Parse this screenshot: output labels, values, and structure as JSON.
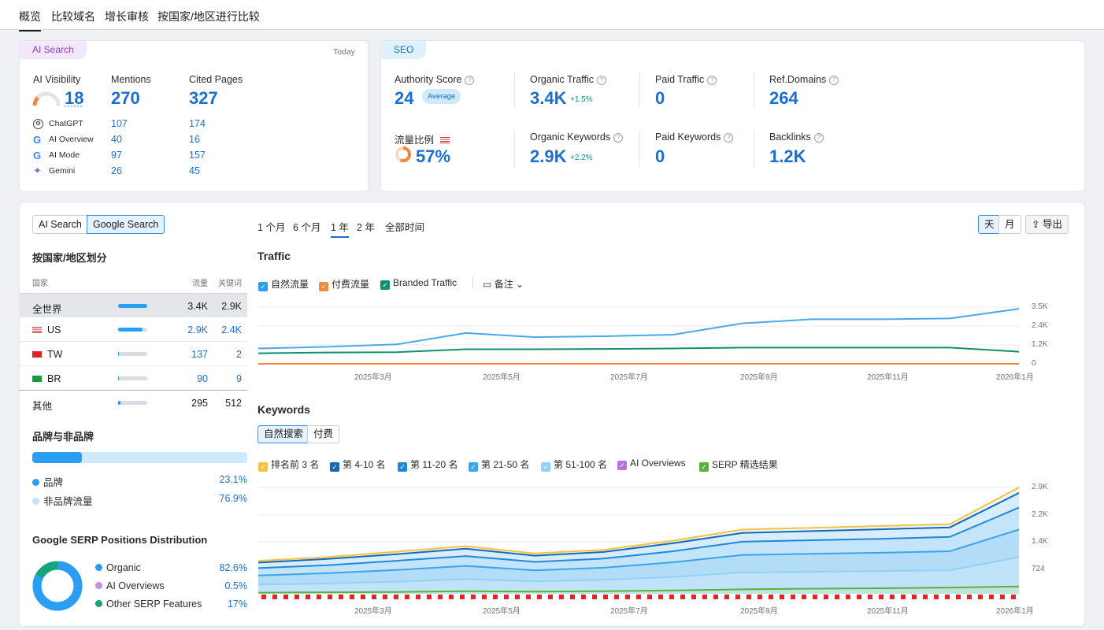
{
  "tabs": [
    "概览",
    "比较域名",
    "增长审核",
    "按国家/地区进行比较"
  ],
  "ai_card": {
    "badge": "AI Search",
    "date": "Today",
    "visibility": {
      "label": "AI Visibility",
      "value": "18"
    },
    "mentions": {
      "label": "Mentions",
      "value": "270"
    },
    "cited": {
      "label": "Cited Pages",
      "value": "327"
    },
    "platforms": [
      {
        "name": "ChatGPT",
        "icon": "chatgpt-icon",
        "mentions": "107",
        "cited": "174"
      },
      {
        "name": "AI Overview",
        "icon": "google-icon",
        "mentions": "40",
        "cited": "16"
      },
      {
        "name": "AI Mode",
        "icon": "google-icon",
        "mentions": "97",
        "cited": "157"
      },
      {
        "name": "Gemini",
        "icon": "gemini-icon",
        "mentions": "26",
        "cited": "45"
      }
    ]
  },
  "seo_card": {
    "badge": "SEO",
    "authority": {
      "label": "Authority Score",
      "value": "24",
      "badge": "Average"
    },
    "organic_traffic": {
      "label": "Organic Traffic",
      "value": "3.4K",
      "change": "+1.5%"
    },
    "paid_traffic": {
      "label": "Paid Traffic",
      "value": "0"
    },
    "ref_domains": {
      "label": "Ref.Domains",
      "value": "264"
    },
    "traffic_share": {
      "label": "流量比例",
      "value": "57%",
      "share": 0.57
    },
    "organic_keywords": {
      "label": "Organic Keywords",
      "value": "2.9K",
      "change": "+2.2%"
    },
    "paid_keywords": {
      "label": "Paid Keywords",
      "value": "0"
    },
    "backlinks": {
      "label": "Backlinks",
      "value": "1.2K"
    }
  },
  "left": {
    "toggle": [
      "AI Search",
      "Google Search"
    ],
    "country_title": "按国家/地区划分",
    "headers": {
      "country": "国家",
      "traffic": "流量",
      "keywords": "关键词"
    },
    "rows": [
      {
        "name": "全世界",
        "traffic": "3.4K",
        "keywords": "2.9K",
        "share": 1.0
      },
      {
        "name": "US",
        "traffic": "2.9K",
        "keywords": "2.4K",
        "share": 0.85
      },
      {
        "name": "TW",
        "traffic": "137",
        "keywords": "2",
        "share": 0.04
      },
      {
        "name": "BR",
        "traffic": "90",
        "keywords": "9",
        "share": 0.03
      },
      {
        "name": "其他",
        "traffic": "295",
        "keywords": "512",
        "share": 0.09
      }
    ],
    "brand_title": "品牌与非品牌",
    "brand_share": 0.231,
    "brand": [
      {
        "label": "品牌",
        "value": "23.1%",
        "color": "#2a9df4"
      },
      {
        "label": "非品牌流量",
        "value": "76.9%",
        "color": "#bfe3fb"
      }
    ],
    "serp_title": "Google SERP Positions Distribution",
    "serp": [
      {
        "label": "Organic",
        "value": "82.6%",
        "color": "#2a9df4"
      },
      {
        "label": "AI Overviews",
        "value": "0.5%",
        "color": "#c78ee8"
      },
      {
        "label": "Other SERP Features",
        "value": "17%",
        "color": "#16a37f"
      }
    ]
  },
  "controls": {
    "periods": [
      "1 个月",
      "6 个月",
      "1 年",
      "2 年",
      "全部时间"
    ],
    "active_period": "1 年",
    "granularity": [
      "天",
      "月"
    ],
    "export": "导出"
  },
  "traffic_chart": {
    "title": "Traffic",
    "legend": [
      {
        "label": "自然流量",
        "color": "#2a9df4"
      },
      {
        "label": "付费流量",
        "color": "#f4883a"
      },
      {
        "label": "Branded Traffic",
        "color": "#0f8f6f"
      }
    ],
    "notes": "备注",
    "y_ticks": [
      "3.5K",
      "2.4K",
      "1.2K",
      "0"
    ],
    "x_ticks": [
      "2025年3月",
      "2025年5月",
      "2025年7月",
      "2025年9月",
      "2025年11月",
      "2026年1月"
    ]
  },
  "keywords_chart": {
    "title": "Keywords",
    "tabs": [
      "自然搜索",
      "付费"
    ],
    "legend": [
      {
        "label": "排名前 3 名",
        "color": "#f5c242"
      },
      {
        "label": "第 4-10 名",
        "color": "#1668b8"
      },
      {
        "label": "第 11-20 名",
        "color": "#2188d8"
      },
      {
        "label": "第 21-50 名",
        "color": "#3aa5ec"
      },
      {
        "label": "第 51-100 名",
        "color": "#92d2f8"
      },
      {
        "label": "AI Overviews",
        "color": "#b770e0"
      },
      {
        "label": "SERP 精选结果",
        "color": "#58b33d"
      }
    ],
    "y_ticks": [
      "2.9K",
      "2.2K",
      "1.4K",
      "724"
    ],
    "x_ticks": [
      "2025年3月",
      "2025年5月",
      "2025年7月",
      "2025年9月",
      "2025年11月",
      "2026年1月"
    ]
  },
  "chart_data": [
    {
      "type": "line",
      "title": "Traffic",
      "xlabel": "",
      "ylabel": "",
      "ylim": [
        0,
        3500
      ],
      "x": [
        "2025-02",
        "2025-03",
        "2025-04",
        "2025-05",
        "2025-06",
        "2025-07",
        "2025-08",
        "2025-09",
        "2025-10",
        "2025-11",
        "2025-12",
        "2026-01"
      ],
      "series": [
        {
          "name": "自然流量",
          "values": [
            950,
            1050,
            1200,
            1900,
            1650,
            1700,
            1800,
            2500,
            2750,
            2750,
            2800,
            3400
          ]
        },
        {
          "name": "付费流量",
          "values": [
            0,
            0,
            0,
            0,
            0,
            0,
            0,
            0,
            0,
            0,
            0,
            0
          ]
        },
        {
          "name": "Branded Traffic",
          "values": [
            650,
            700,
            720,
            900,
            900,
            920,
            950,
            1000,
            1000,
            1000,
            1000,
            750
          ]
        }
      ]
    },
    {
      "type": "area",
      "title": "Keywords",
      "ylim": [
        0,
        2900
      ],
      "x": [
        "2025-02",
        "2025-03",
        "2025-04",
        "2025-05",
        "2025-06",
        "2025-07",
        "2025-08",
        "2025-09",
        "2025-10",
        "2025-11",
        "2025-12",
        "2026-01"
      ],
      "series": [
        {
          "name": "排名前 3 名",
          "values": [
            900,
            1000,
            1150,
            1300,
            1100,
            1200,
            1450,
            1750,
            1800,
            1850,
            1900,
            2900
          ]
        },
        {
          "name": "第 4-10 名",
          "values": [
            850,
            950,
            1080,
            1230,
            1040,
            1140,
            1380,
            1660,
            1710,
            1760,
            1810,
            2750
          ]
        },
        {
          "name": "第 11-20 名",
          "values": [
            700,
            780,
            900,
            1030,
            870,
            960,
            1160,
            1420,
            1460,
            1500,
            1550,
            2350
          ]
        },
        {
          "name": "第 21-50 名",
          "values": [
            500,
            560,
            650,
            760,
            640,
            710,
            860,
            1060,
            1090,
            1120,
            1160,
            1750
          ]
        },
        {
          "name": "第 51-100 名",
          "values": [
            250,
            280,
            330,
            400,
            340,
            380,
            460,
            580,
            600,
            620,
            640,
            1000
          ]
        },
        {
          "name": "SERP 精选结果",
          "values": [
            30,
            40,
            50,
            70,
            60,
            70,
            90,
            120,
            140,
            150,
            170,
            200
          ]
        }
      ]
    }
  ]
}
